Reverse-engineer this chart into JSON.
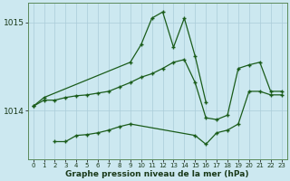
{
  "x_ticks": [
    0,
    1,
    2,
    3,
    4,
    5,
    6,
    7,
    8,
    9,
    10,
    11,
    12,
    13,
    14,
    15,
    16,
    17,
    18,
    19,
    20,
    21,
    22,
    23
  ],
  "series1": {
    "x": [
      0,
      1,
      9,
      10,
      11,
      12,
      13,
      14,
      15,
      16
    ],
    "y": [
      1014.05,
      1014.15,
      1014.55,
      1014.75,
      1015.05,
      1015.12,
      1014.72,
      1015.05,
      1014.62,
      1014.1
    ]
  },
  "series2": {
    "x": [
      0,
      1,
      2,
      3,
      4,
      5,
      6,
      7,
      8,
      9,
      10,
      11,
      12,
      13,
      14,
      15,
      16,
      17,
      18,
      19,
      20,
      21,
      22,
      23
    ],
    "y": [
      1014.05,
      1014.12,
      1014.12,
      1014.15,
      1014.17,
      1014.18,
      1014.2,
      1014.22,
      1014.27,
      1014.32,
      1014.38,
      1014.42,
      1014.48,
      1014.55,
      1014.58,
      1014.32,
      1013.92,
      1013.9,
      1013.95,
      1014.48,
      1014.52,
      1014.55,
      1014.22,
      1014.22
    ]
  },
  "series3": {
    "x": [
      2,
      3,
      4,
      5,
      6,
      7,
      8,
      9,
      15,
      16,
      17,
      18,
      19,
      20,
      21,
      22,
      23
    ],
    "y": [
      1013.65,
      1013.65,
      1013.72,
      1013.73,
      1013.75,
      1013.78,
      1013.82,
      1013.85,
      1013.72,
      1013.62,
      1013.75,
      1013.78,
      1013.85,
      1014.22,
      1014.22,
      1014.18,
      1014.18
    ]
  },
  "ylim": [
    1013.45,
    1015.22
  ],
  "yticks": [
    1014.0,
    1015.0
  ],
  "ytick_labels": [
    "1014",
    "1015"
  ],
  "bg_color": "#cce8f0",
  "grid_color": "#aaccd8",
  "line_color": "#1a5c1a",
  "xlabel": "Graphe pression niveau de la mer (hPa)"
}
